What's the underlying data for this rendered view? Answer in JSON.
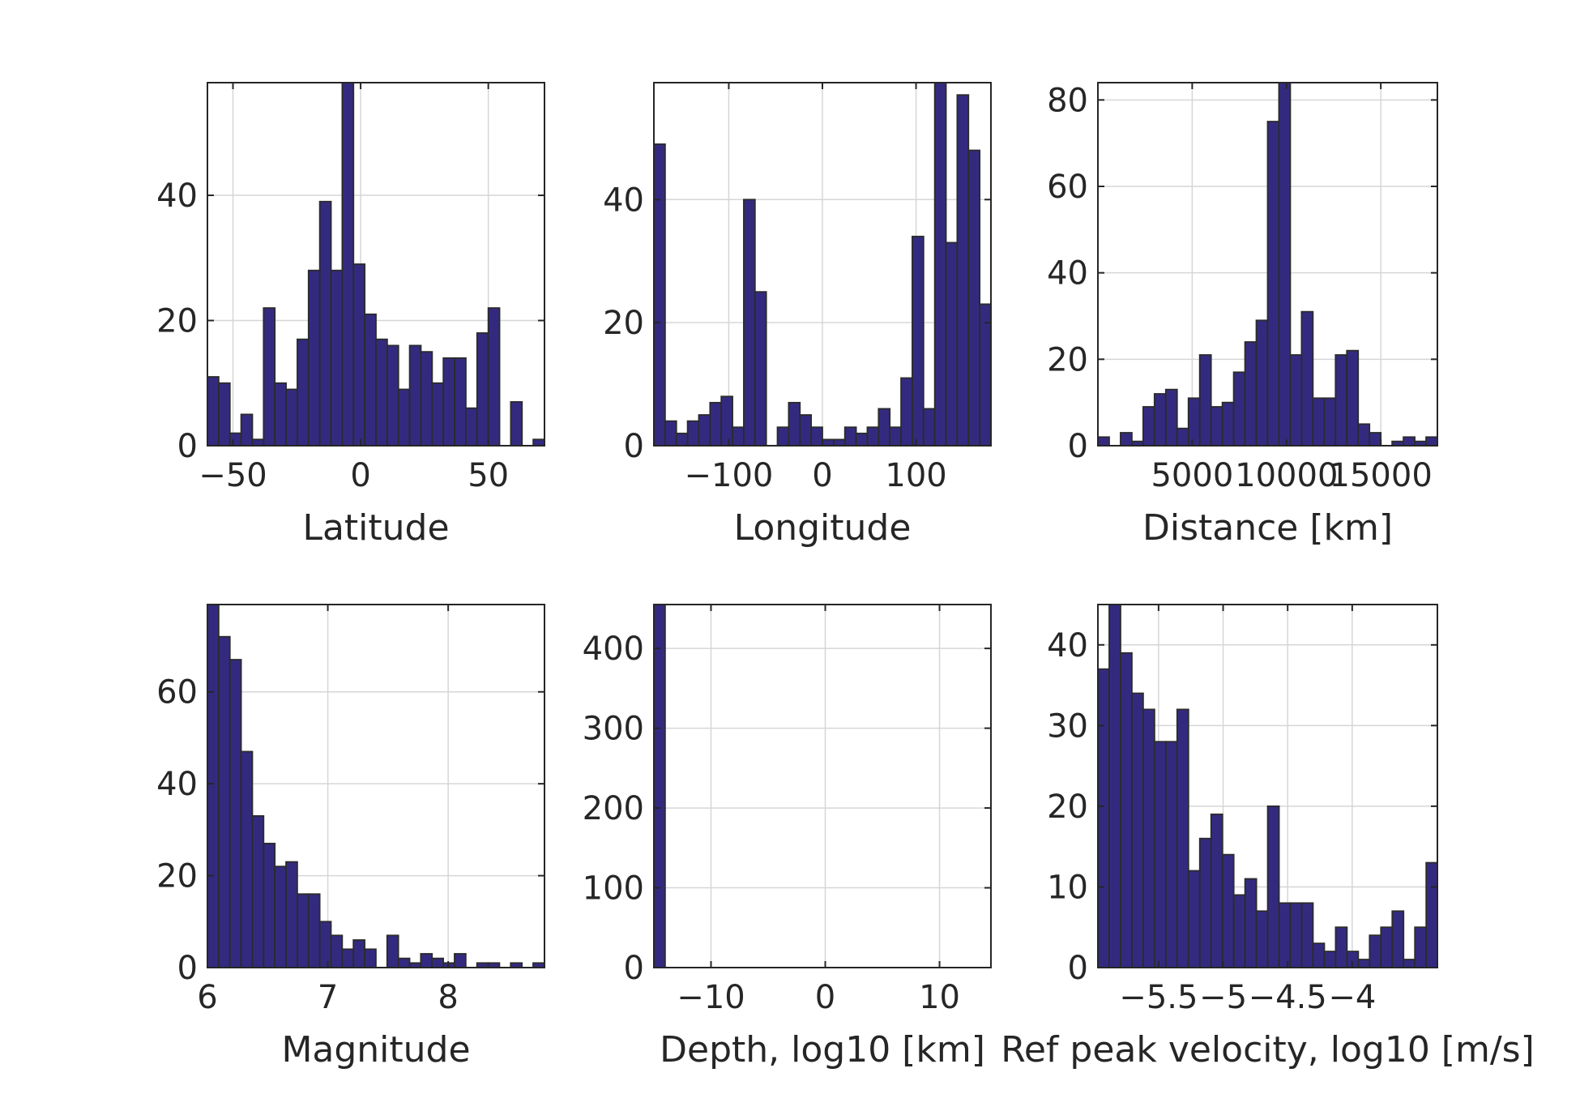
{
  "style": {
    "bar_fill": "#332a80",
    "bar_edge": "#2b2b2b",
    "grid_color": "#d6d6d6",
    "axis_color": "#262626",
    "background": "#ffffff"
  },
  "chart_data": [
    {
      "type": "bar",
      "xlabel": "Latitude",
      "xlim": [
        -60,
        72
      ],
      "ylim": [
        0,
        58
      ],
      "xticks": [
        -50,
        0,
        50
      ],
      "xtick_labels": [
        "−50",
        "0",
        "50"
      ],
      "yticks": [
        0,
        20,
        40
      ],
      "ytick_labels": [
        "0",
        "20",
        "40"
      ],
      "grid": true,
      "bin_width": 4.4,
      "bins_start": -60,
      "values": [
        11,
        10,
        2,
        5,
        1,
        22,
        10,
        9,
        17,
        28,
        39,
        28,
        58,
        29,
        21,
        17,
        16,
        9,
        16,
        15,
        10,
        14,
        14,
        6,
        18,
        22,
        0,
        7,
        0,
        1
      ]
    },
    {
      "type": "bar",
      "xlabel": "Longitude",
      "xlim": [
        -180,
        180
      ],
      "ylim": [
        0,
        59
      ],
      "xticks": [
        -100,
        0,
        100
      ],
      "xtick_labels": [
        "−100",
        "0",
        "100"
      ],
      "yticks": [
        0,
        20,
        40
      ],
      "ytick_labels": [
        "0",
        "20",
        "40"
      ],
      "grid": true,
      "bin_width": 12,
      "bins_start": -180,
      "values": [
        49,
        4,
        2,
        4,
        5,
        7,
        8,
        3,
        40,
        25,
        0,
        3,
        7,
        5,
        3,
        1,
        1,
        3,
        2,
        3,
        6,
        3,
        11,
        34,
        6,
        59,
        33,
        57,
        48,
        23
      ]
    },
    {
      "type": "bar",
      "xlabel": "Distance [km]",
      "xlim": [
        0,
        18000
      ],
      "ylim": [
        0,
        84
      ],
      "xticks": [
        5000,
        10000,
        15000
      ],
      "xtick_labels": [
        "5000",
        "10000",
        "15000"
      ],
      "yticks": [
        0,
        20,
        40,
        60,
        80
      ],
      "ytick_labels": [
        "0",
        "20",
        "40",
        "60",
        "80"
      ],
      "grid": true,
      "bin_width": 600,
      "bins_start": 0,
      "values": [
        2,
        0,
        3,
        1,
        9,
        12,
        13,
        4,
        11,
        21,
        9,
        10,
        17,
        24,
        29,
        75,
        84,
        21,
        31,
        11,
        11,
        21,
        22,
        5,
        3,
        0,
        1,
        2,
        1,
        2
      ]
    },
    {
      "type": "bar",
      "xlabel": "Magnitude",
      "xlim": [
        6,
        8.8
      ],
      "ylim": [
        0,
        79
      ],
      "xticks": [
        6,
        7,
        8
      ],
      "xtick_labels": [
        "6",
        "7",
        "8"
      ],
      "yticks": [
        0,
        20,
        40,
        60
      ],
      "ytick_labels": [
        "0",
        "20",
        "40",
        "60"
      ],
      "grid": true,
      "bin_width": 0.0933,
      "bins_start": 6,
      "values": [
        79,
        72,
        67,
        47,
        33,
        27,
        22,
        23,
        16,
        16,
        10,
        7,
        4,
        6,
        4,
        0,
        7,
        2,
        1,
        3,
        2,
        1,
        3,
        0,
        1,
        1,
        0,
        1,
        0,
        1
      ]
    },
    {
      "type": "bar",
      "xlabel": "Depth, log10  [km]",
      "xlim": [
        -15,
        14.5
      ],
      "ylim": [
        0,
        455
      ],
      "xticks": [
        -10,
        0,
        10
      ],
      "xtick_labels": [
        "−10",
        "0",
        "10"
      ],
      "yticks": [
        0,
        100,
        200,
        300,
        400
      ],
      "ytick_labels": [
        "0",
        "100",
        "200",
        "300",
        "400"
      ],
      "grid": true,
      "bin_width": 0.983,
      "bins_start": -15,
      "values": [
        455,
        0,
        0,
        0,
        0,
        0,
        0,
        0,
        0,
        0,
        0,
        0,
        0,
        0,
        0,
        0,
        0,
        0,
        0,
        0,
        0,
        0,
        0,
        0,
        0,
        0,
        0,
        0,
        0,
        0
      ]
    },
    {
      "type": "bar",
      "xlabel": "Ref peak velocity, log10 [m/s]",
      "xlim": [
        -5.97,
        -3.34
      ],
      "ylim": [
        0,
        45
      ],
      "xticks": [
        -5.5,
        -5,
        -4.5,
        -4
      ],
      "xtick_labels": [
        "−5.5",
        "−5",
        "−4.5",
        "−4"
      ],
      "yticks": [
        0,
        10,
        20,
        30,
        40
      ],
      "ytick_labels": [
        "0",
        "10",
        "20",
        "30",
        "40"
      ],
      "grid": true,
      "bin_width": 0.0877,
      "bins_start": -5.97,
      "values": [
        37,
        45,
        39,
        34,
        32,
        28,
        28,
        32,
        12,
        16,
        19,
        14,
        9,
        11,
        7,
        20,
        8,
        8,
        8,
        3,
        2,
        5,
        2,
        1,
        4,
        5,
        7,
        1,
        5,
        13
      ]
    }
  ]
}
